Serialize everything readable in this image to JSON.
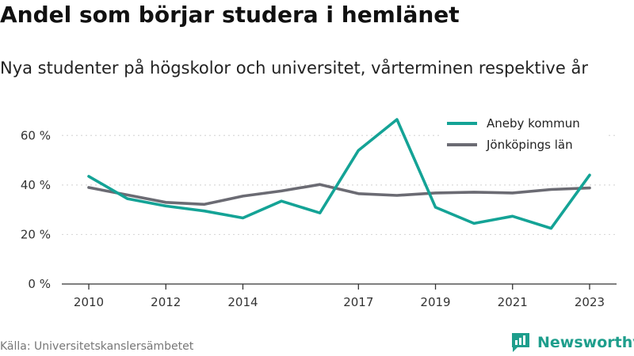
{
  "header": {
    "title": "Andel som börjar studera i hemlänet",
    "subtitle": "Nya studenter på högskolor och universitet, vårterminen respektive år"
  },
  "footer": {
    "source": "Källa: Universitetskanslersämbetet",
    "brand": "Newsworthy"
  },
  "colors": {
    "aneby": "#14a396",
    "jonkoping": "#6b6b73",
    "grid": "#d9d9d9",
    "axis": "#333333",
    "brand": "#1e9e8c"
  },
  "chart_data": {
    "type": "line",
    "x": [
      2010,
      2011,
      2012,
      2013,
      2014,
      2015,
      2016,
      2017,
      2018,
      2019,
      2020,
      2021,
      2022,
      2023
    ],
    "x_ticks": [
      2010,
      2012,
      2014,
      2017,
      2019,
      2021,
      2023
    ],
    "x_tick_labels": [
      "2010",
      "2012",
      "2014",
      "2017",
      "2019",
      "2021",
      "2023"
    ],
    "xlim": [
      2009.3,
      2023.7
    ],
    "ylim": [
      0,
      70
    ],
    "y_ticks": [
      0,
      20,
      40,
      60
    ],
    "y_tick_labels": [
      "0 %",
      "20 %",
      "40 %",
      "60 %"
    ],
    "grid": true,
    "legend_position": "top-right",
    "series": [
      {
        "name": "Aneby kommun",
        "color": "#14a396",
        "values": [
          43.5,
          34.5,
          31.5,
          29.5,
          26.7,
          33.5,
          28.7,
          54,
          66.5,
          31,
          24.5,
          27.4,
          22.5,
          44
        ]
      },
      {
        "name": "Jönköpings län",
        "color": "#6b6b73",
        "values": [
          39,
          36,
          33,
          32.2,
          35.5,
          37.6,
          40.2,
          36.5,
          35.8,
          36.8,
          37.1,
          36.8,
          38.2,
          38.8
        ]
      }
    ]
  }
}
